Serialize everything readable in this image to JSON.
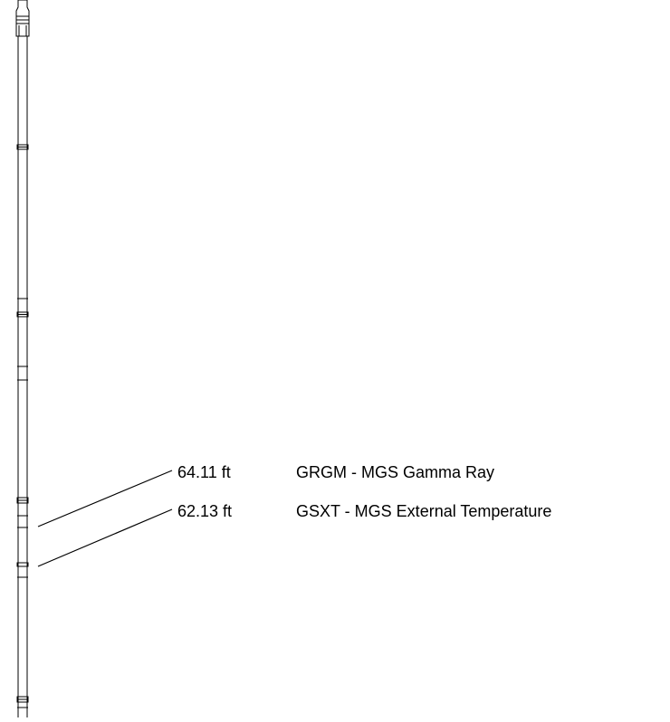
{
  "sensors": [
    {
      "depth": "64.11 ft",
      "name": "GRGM - MGS Gamma Ray"
    },
    {
      "depth": "62.13 ft",
      "name": "GSXT - MGS External Temperature"
    }
  ]
}
